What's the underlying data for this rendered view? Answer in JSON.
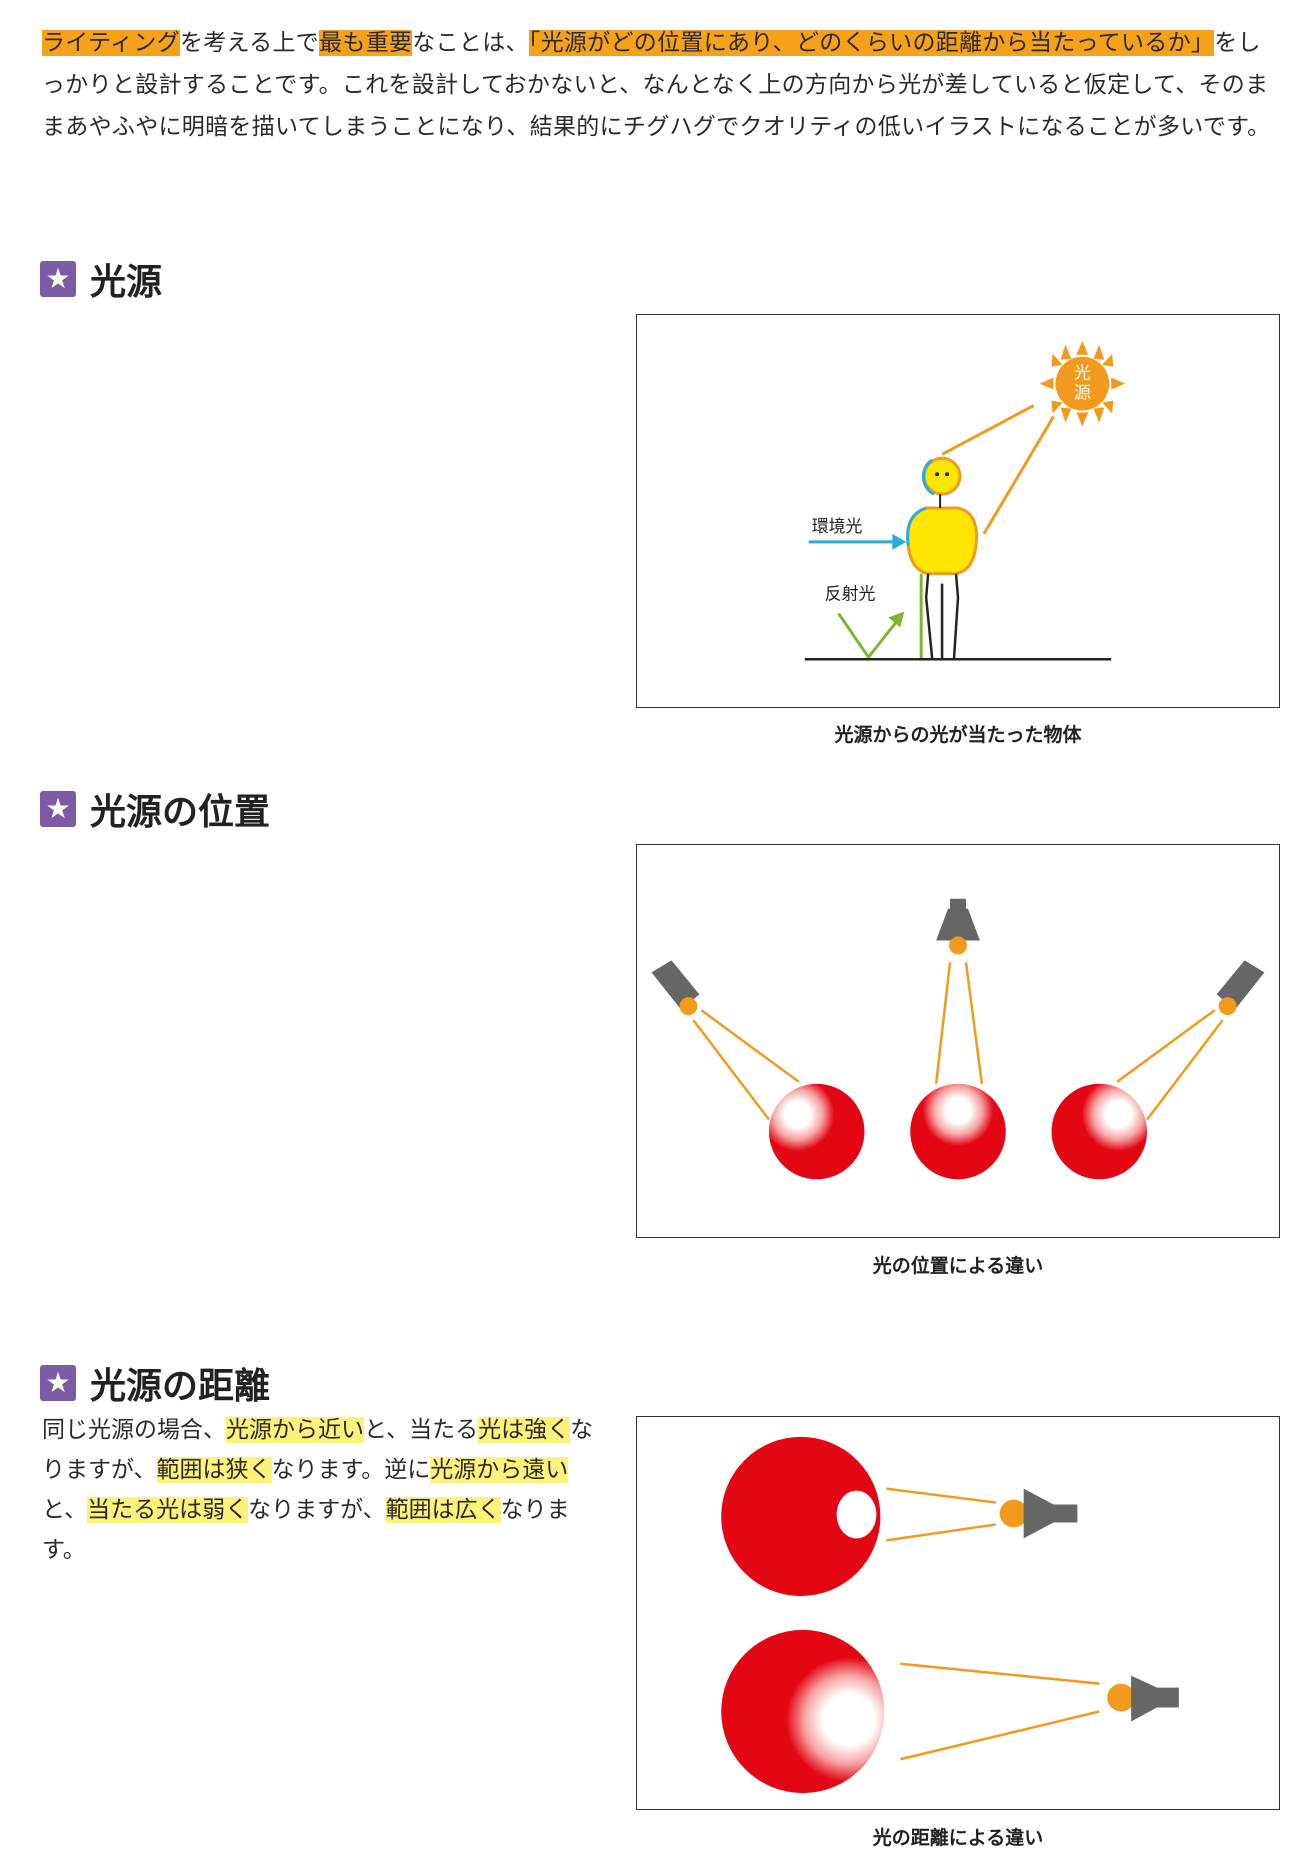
{
  "intro": {
    "segments": [
      {
        "text": "ライティング",
        "hl": "o"
      },
      {
        "text": "を考える上で",
        "hl": ""
      },
      {
        "text": "最も重要",
        "hl": "o"
      },
      {
        "text": "なことは、",
        "hl": ""
      },
      {
        "text": "「光源がどの位置にあり、どのくらいの距離から当たっているか」",
        "hl": "o"
      },
      {
        "text": "をしっかりと設計することです。これを設計しておかないと、なんとなく上の方向から光が差していると仮定して、そのままあやふやに明暗を描いてしまうことになり、結果的にチグハグでクオリティの低いイラストになることが多いです。",
        "hl": ""
      }
    ]
  },
  "sections": {
    "light_source": {
      "title": "光源",
      "caption": "光源からの光が当たった物体"
    },
    "position": {
      "title": "光源の位置",
      "caption": "光の位置による違い"
    },
    "distance": {
      "title": "光源の距離",
      "caption": "光の距離による違い"
    }
  },
  "figure1": {
    "sun_label_1": "光",
    "sun_label_2": "源",
    "ambient_label": "環境光",
    "reflected_label": "反射光"
  },
  "distance_text": {
    "segments": [
      {
        "text": "同じ光源の場合、",
        "hl": ""
      },
      {
        "text": "光源から近い",
        "hl": "y"
      },
      {
        "text": "と、当たる",
        "hl": ""
      },
      {
        "text": "光は強く",
        "hl": "y"
      },
      {
        "text": "なりますが、",
        "hl": ""
      },
      {
        "text": "範囲は狭く",
        "hl": "y"
      },
      {
        "text": "なります。逆に",
        "hl": ""
      },
      {
        "text": "光源から遠い",
        "hl": "y"
      },
      {
        "text": "と、",
        "hl": ""
      },
      {
        "text": "当たる光は弱く",
        "hl": "y"
      },
      {
        "text": "なりますが、",
        "hl": ""
      },
      {
        "text": "範囲は広く",
        "hl": "y"
      },
      {
        "text": "なります。",
        "hl": ""
      }
    ]
  },
  "colors": {
    "orange": "#f29a1e",
    "sphere_red": "#e30613",
    "ambient_blue": "#29abe2",
    "reflect_green": "#7cb82f",
    "lamp_gray": "#666666",
    "star_purple": "#7d5aa6"
  }
}
